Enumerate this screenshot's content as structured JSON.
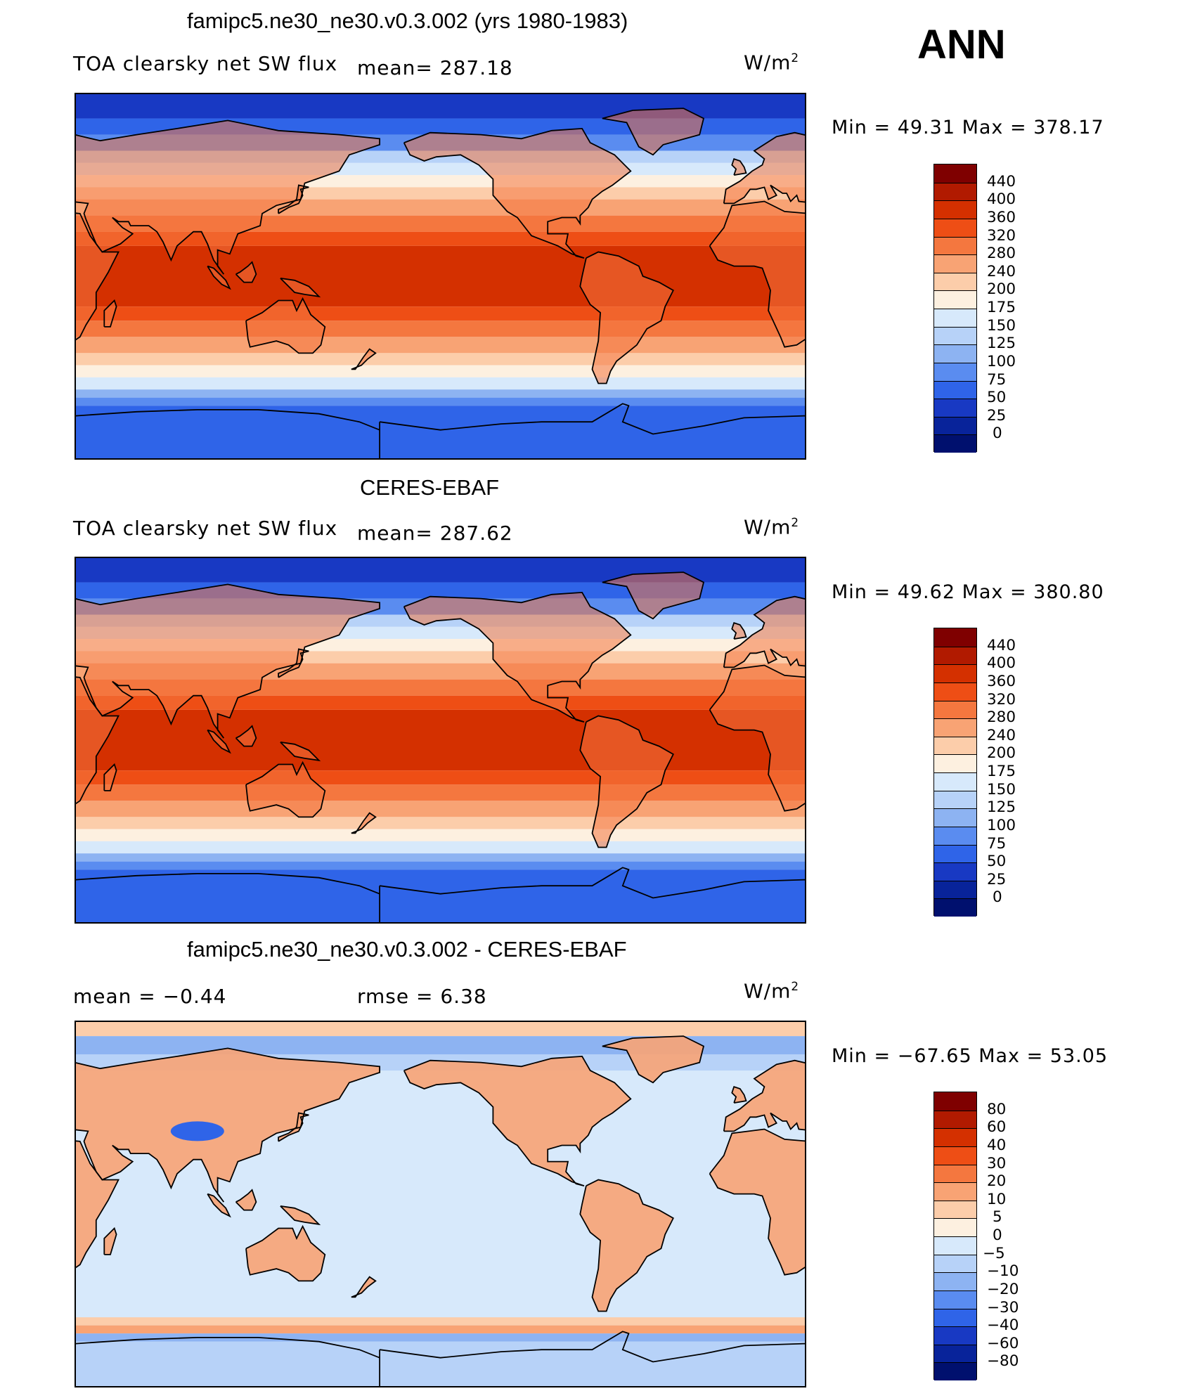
{
  "season": "ANN",
  "panels": [
    {
      "id": "model",
      "title": "famipc5.ne30_ne30.v0.3.002 (yrs 1980-1983)",
      "variable": "TOA clearsky net SW flux",
      "mean_label": "mean= 287.18",
      "units": "W/m",
      "units_exp": "2",
      "minmax": "Min =   49.31  Max  =  378.17",
      "kind": "absolute",
      "colorbar": {
        "ticks": [
          "440",
          "400",
          "360",
          "320",
          "280",
          "240",
          "200",
          "175",
          "150",
          "125",
          "100",
          "75",
          "50",
          "25",
          "0"
        ],
        "colors": [
          "#7f0000",
          "#b11a00",
          "#d43000",
          "#ee4e15",
          "#f4773f",
          "#f8a374",
          "#fccdaa",
          "#fdf0e0",
          "#d7e9fb",
          "#b7d2f8",
          "#8db3f2",
          "#5a8cf0",
          "#2f64e8",
          "#1839c3",
          "#08239a",
          "#00106e"
        ]
      }
    },
    {
      "id": "obs",
      "title": "CERES-EBAF",
      "variable": "TOA clearsky net SW flux",
      "mean_label": "mean= 287.62",
      "units": "W/m",
      "units_exp": "2",
      "minmax": "Min =   49.62  Max  =  380.80",
      "kind": "absolute",
      "colorbar": {
        "ticks": [
          "440",
          "400",
          "360",
          "320",
          "280",
          "240",
          "200",
          "175",
          "150",
          "125",
          "100",
          "75",
          "50",
          "25",
          "0"
        ],
        "colors": [
          "#7f0000",
          "#b11a00",
          "#d43000",
          "#ee4e15",
          "#f4773f",
          "#f8a374",
          "#fccdaa",
          "#fdf0e0",
          "#d7e9fb",
          "#b7d2f8",
          "#8db3f2",
          "#5a8cf0",
          "#2f64e8",
          "#1839c3",
          "#08239a",
          "#00106e"
        ]
      }
    },
    {
      "id": "diff",
      "title": "famipc5.ne30_ne30.v0.3.002 - CERES-EBAF",
      "mean_label": "mean =   −0.44",
      "rmse_label": "rmse =    6.38",
      "units": "W/m",
      "units_exp": "2",
      "minmax": "Min = −67.65  Max  =   53.05",
      "kind": "difference",
      "colorbar": {
        "ticks": [
          "80",
          "60",
          "40",
          "30",
          "20",
          "10",
          "5",
          "0",
          "−5",
          "−10",
          "−20",
          "−30",
          "−40",
          "−60",
          "−80"
        ],
        "colors": [
          "#7f0000",
          "#b11a00",
          "#d43000",
          "#ee4e15",
          "#f4773f",
          "#f8a374",
          "#fccdaa",
          "#fdf0e0",
          "#d7e9fb",
          "#b7d2f8",
          "#8db3f2",
          "#5a8cf0",
          "#2f64e8",
          "#1839c3",
          "#08239a",
          "#00106e"
        ]
      }
    }
  ]
}
